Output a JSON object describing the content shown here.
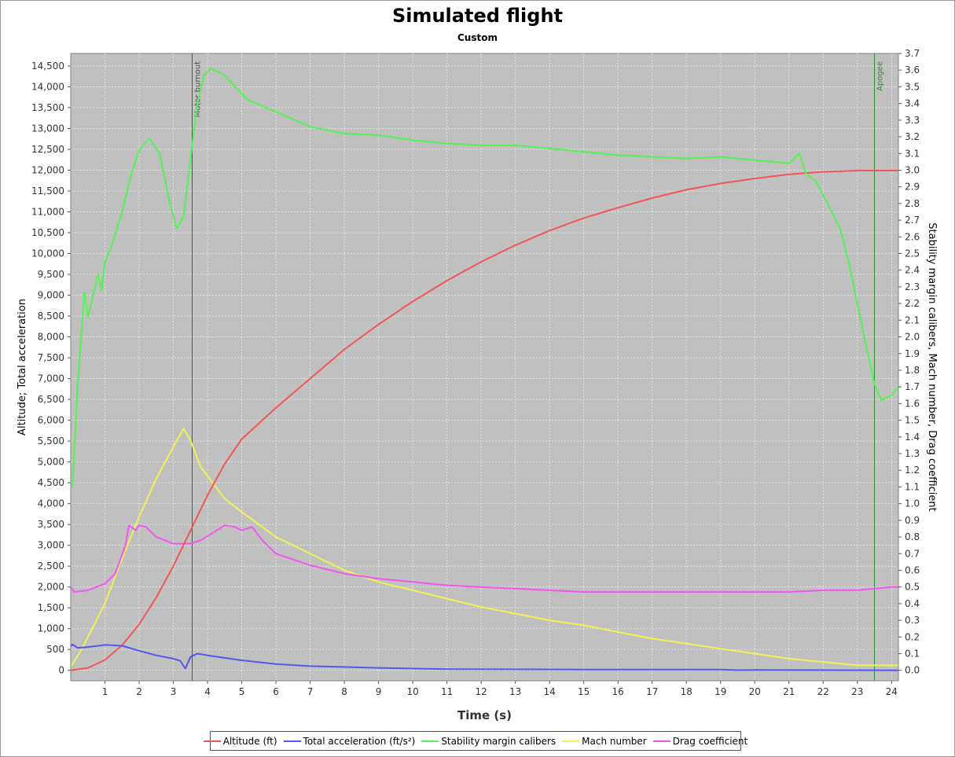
{
  "chart_data": {
    "type": "line",
    "title": "Simulated flight",
    "subtitle": "Custom",
    "xlabel": "Time (s)",
    "ylabel_left": "Altitude; Total acceleration",
    "ylabel_right": "Stability margin calibers, Mach number, Drag coefficient",
    "xlim": [
      0,
      24.2
    ],
    "ylim_left": [
      -250,
      14800
    ],
    "ylim_right": [
      -0.0625,
      3.7
    ],
    "x_ticks": [
      1,
      2,
      3,
      4,
      5,
      6,
      7,
      8,
      9,
      10,
      11,
      12,
      13,
      14,
      15,
      16,
      17,
      18,
      19,
      20,
      21,
      22,
      23,
      24
    ],
    "y_left_ticks": [
      0,
      500,
      1000,
      1500,
      2000,
      2500,
      3000,
      3500,
      4000,
      4500,
      5000,
      5500,
      6000,
      6500,
      7000,
      7500,
      8000,
      8500,
      9000,
      9500,
      10000,
      10500,
      11000,
      11500,
      12000,
      12500,
      13000,
      13500,
      14000,
      14500
    ],
    "y_right_ticks": [
      0.0,
      0.1,
      0.2,
      0.3,
      0.4,
      0.5,
      0.6,
      0.7,
      0.8,
      0.9,
      1.0,
      1.1,
      1.2,
      1.3,
      1.4,
      1.5,
      1.6,
      1.7,
      1.8,
      1.9,
      2.0,
      2.1,
      2.2,
      2.3,
      2.4,
      2.5,
      2.6,
      2.7,
      2.8,
      2.9,
      3.0,
      3.1,
      3.2,
      3.3,
      3.4,
      3.5,
      3.6,
      3.7
    ],
    "grid": true,
    "legend_position": "bottom",
    "annotations": [
      {
        "label": "Motor burnout",
        "x": 3.55,
        "color": "#505050"
      },
      {
        "label": "Apogee",
        "x": 23.5,
        "color": "#2e8b2e"
      }
    ],
    "series": [
      {
        "name": "Altitude (ft)",
        "axis": "left",
        "color": "#f25555",
        "x": [
          0,
          0.5,
          1,
          1.5,
          2,
          2.5,
          3,
          3.5,
          4,
          4.5,
          5,
          6,
          7,
          8,
          9,
          10,
          11,
          12,
          13,
          14,
          15,
          16,
          17,
          18,
          19,
          20,
          21,
          22,
          23,
          24.2
        ],
        "y": [
          0,
          60,
          250,
          600,
          1100,
          1750,
          2500,
          3350,
          4200,
          4950,
          5550,
          6300,
          7000,
          7700,
          8300,
          8850,
          9350,
          9800,
          10200,
          10550,
          10850,
          11100,
          11330,
          11530,
          11680,
          11800,
          11900,
          11960,
          11990,
          11990
        ]
      },
      {
        "name": "Total acceleration (ft/s²)",
        "axis": "left",
        "color": "#5555f2",
        "x": [
          0,
          0.05,
          0.2,
          0.5,
          1,
          1.5,
          2,
          2.5,
          3,
          3.2,
          3.35,
          3.5,
          3.7,
          4,
          5,
          6,
          7,
          9,
          11,
          15,
          19,
          19.5,
          20,
          24.2
        ],
        "y": [
          580,
          620,
          540,
          560,
          610,
          590,
          470,
          360,
          280,
          230,
          40,
          320,
          400,
          360,
          240,
          150,
          100,
          60,
          30,
          20,
          20,
          5,
          10,
          0
        ]
      },
      {
        "name": "Stability margin calibers",
        "axis": "right",
        "color": "#55f255",
        "x": [
          0.05,
          0.2,
          0.4,
          0.5,
          0.6,
          0.8,
          0.9,
          1,
          1.2,
          1.5,
          1.8,
          2,
          2.3,
          2.6,
          2.9,
          3.1,
          3.3,
          3.55,
          3.7,
          3.9,
          4.1,
          4.3,
          4.5,
          4.8,
          5.2,
          6,
          7,
          8,
          9,
          10,
          11,
          12,
          13,
          14,
          15,
          16,
          17,
          18,
          19,
          20,
          21,
          21.3,
          21.5,
          21.8,
          22,
          22.5,
          22.8,
          23.2,
          23.5,
          23.7,
          24,
          24.2
        ],
        "y": [
          1.1,
          1.7,
          2.27,
          2.12,
          2.2,
          2.38,
          2.28,
          2.45,
          2.55,
          2.75,
          3.0,
          3.12,
          3.19,
          3.1,
          2.8,
          2.65,
          2.72,
          3.15,
          3.4,
          3.57,
          3.61,
          3.59,
          3.57,
          3.5,
          3.42,
          3.35,
          3.26,
          3.22,
          3.21,
          3.18,
          3.16,
          3.15,
          3.15,
          3.13,
          3.11,
          3.09,
          3.08,
          3.07,
          3.08,
          3.06,
          3.04,
          3.1,
          2.98,
          2.93,
          2.85,
          2.65,
          2.4,
          2.0,
          1.72,
          1.62,
          1.65,
          1.7
        ]
      },
      {
        "name": "Mach number",
        "axis": "right",
        "color": "#f2f255",
        "x": [
          0,
          0.3,
          1,
          1.5,
          2,
          2.5,
          3,
          3.3,
          3.5,
          3.8,
          4.5,
          5,
          6,
          7,
          8,
          9,
          10,
          11,
          12,
          13,
          14,
          15,
          16,
          17,
          18,
          19,
          20,
          21,
          22,
          23,
          24.2
        ],
        "y": [
          0.02,
          0.12,
          0.4,
          0.67,
          0.92,
          1.15,
          1.34,
          1.45,
          1.38,
          1.22,
          1.03,
          0.95,
          0.8,
          0.7,
          0.6,
          0.53,
          0.48,
          0.43,
          0.38,
          0.34,
          0.3,
          0.27,
          0.23,
          0.19,
          0.16,
          0.13,
          0.1,
          0.07,
          0.05,
          0.03,
          0.03
        ]
      },
      {
        "name": "Drag coefficient",
        "axis": "right",
        "color": "#f255f2",
        "x": [
          0,
          0.1,
          0.5,
          1,
          1.3,
          1.6,
          1.7,
          1.9,
          2,
          2.2,
          2.5,
          3,
          3.5,
          3.8,
          4.2,
          4.5,
          4.8,
          5,
          5.3,
          5.6,
          6,
          7,
          8,
          9,
          10,
          11,
          12,
          13,
          14,
          15,
          16,
          17,
          18,
          19,
          20,
          21,
          22,
          23,
          24,
          24.2
        ],
        "y": [
          0.5,
          0.47,
          0.48,
          0.52,
          0.58,
          0.75,
          0.87,
          0.84,
          0.87,
          0.86,
          0.8,
          0.76,
          0.76,
          0.78,
          0.83,
          0.87,
          0.86,
          0.84,
          0.86,
          0.78,
          0.7,
          0.63,
          0.58,
          0.55,
          0.53,
          0.51,
          0.5,
          0.49,
          0.48,
          0.47,
          0.47,
          0.47,
          0.47,
          0.47,
          0.47,
          0.47,
          0.48,
          0.48,
          0.5,
          0.5
        ]
      }
    ]
  }
}
